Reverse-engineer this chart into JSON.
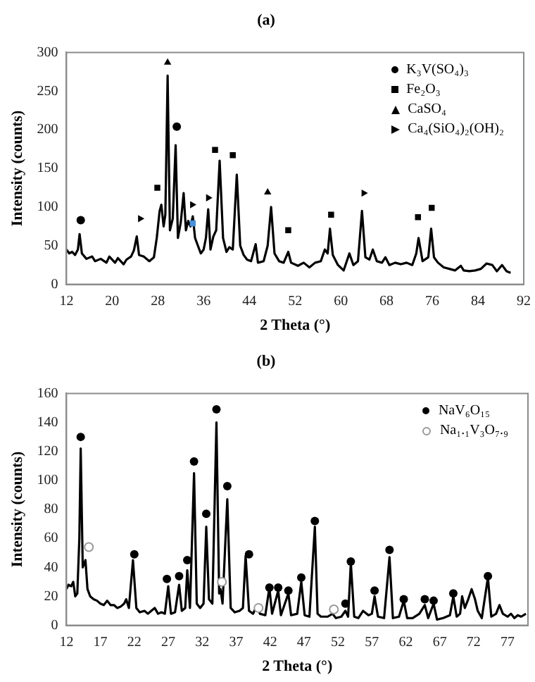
{
  "chart_data": [
    {
      "type": "line",
      "title": "(a)",
      "xlabel": "2 Theta (°)",
      "ylabel": "Intensity (counts)",
      "xlim": [
        12,
        92
      ],
      "ylim": [
        0,
        300
      ],
      "xticks": [
        12,
        20,
        28,
        36,
        44,
        52,
        60,
        68,
        76,
        84,
        92
      ],
      "yticks": [
        0,
        50,
        100,
        150,
        200,
        250,
        300
      ],
      "grid": false,
      "legend": "top right",
      "series": [
        {
          "type": "line",
          "color": "#000000",
          "marker": "none",
          "x": [
            12,
            12.5,
            13,
            13.5,
            14,
            14.3,
            14.7,
            15.5,
            16.5,
            17,
            18,
            19,
            19.5,
            20.5,
            21,
            22,
            22.5,
            23.3,
            23.8,
            24.3,
            24.7,
            25.5,
            26.5,
            27.3,
            27.8,
            28.3,
            28.6,
            29,
            29.3,
            29.7,
            30.1,
            30.6,
            31.1,
            31.5,
            32,
            32.5,
            32.9,
            33.3,
            33.7,
            34.1,
            34.5,
            35,
            35.5,
            36,
            36.4,
            36.8,
            37.2,
            37.7,
            38.2,
            38.8,
            39.4,
            40,
            40.5,
            41.1,
            41.8,
            42.4,
            43,
            43.6,
            44.3,
            45.1,
            45.5,
            46.5,
            47.2,
            47.8,
            48.4,
            49.2,
            50,
            50.8,
            51.3,
            52.5,
            53.5,
            54.5,
            55.5,
            56.5,
            57.2,
            57.7,
            58.1,
            58.6,
            59.5,
            60.5,
            61.5,
            62.2,
            63,
            63.7,
            64.3,
            65,
            65.6,
            66.3,
            67.2,
            67.8,
            68.5,
            69.5,
            70.5,
            71.5,
            72.5,
            73.2,
            73.6,
            74.3,
            75.3,
            75.8,
            76.3,
            77,
            78,
            79,
            80,
            81,
            81.5,
            82.5,
            83.5,
            84.5,
            85.5,
            86.5,
            87.3,
            88.2,
            89,
            89.7
          ],
          "values": [
            45,
            40,
            42,
            38,
            45,
            65,
            40,
            33,
            36,
            30,
            33,
            28,
            36,
            28,
            34,
            26,
            32,
            36,
            44,
            62,
            38,
            36,
            30,
            35,
            60,
            95,
            103,
            75,
            90,
            270,
            70,
            85,
            180,
            60,
            80,
            118,
            70,
            82,
            75,
            88,
            60,
            50,
            40,
            45,
            60,
            97,
            45,
            62,
            70,
            160,
            60,
            42,
            48,
            45,
            142,
            50,
            38,
            32,
            30,
            52,
            28,
            30,
            50,
            100,
            40,
            30,
            28,
            42,
            28,
            24,
            28,
            22,
            28,
            30,
            45,
            40,
            72,
            38,
            25,
            18,
            40,
            25,
            30,
            95,
            35,
            32,
            45,
            30,
            28,
            35,
            25,
            28,
            26,
            28,
            25,
            40,
            60,
            30,
            35,
            72,
            35,
            28,
            22,
            20,
            18,
            24,
            18,
            17,
            18,
            20,
            27,
            25,
            17,
            25,
            17,
            15
          ]
        },
        {
          "type": "scatter",
          "name": "K₃V(SO₄)₃",
          "color": "#000000",
          "marker": "circle",
          "x": [
            14.5,
            31.3
          ],
          "values": [
            83,
            204
          ]
        },
        {
          "type": "scatter",
          "name": "Fe₂O₃",
          "color": "#000000",
          "marker": "square",
          "x": [
            27.9,
            34.1,
            38,
            41.1,
            50.8,
            58.3,
            73.5,
            75.9
          ],
          "values": [
            125,
            79,
            174,
            167,
            70,
            90,
            87,
            99
          ],
          "colors": [
            "#000000",
            "#4a90d9",
            "#000000",
            "#000000",
            "#000000",
            "#000000",
            "#000000",
            "#000000"
          ]
        },
        {
          "type": "scatter",
          "name": "CaSO₄",
          "color": "#000000",
          "marker": "triangle",
          "x": [
            29.7,
            47.2
          ],
          "values": [
            287,
            119
          ]
        },
        {
          "type": "scatter",
          "name": "Ca₄(SiO₄)₂(OH)₂",
          "color": "#000000",
          "marker": "triangle-right",
          "x": [
            24.9,
            34,
            36.8,
            64
          ],
          "values": [
            85,
            103,
            112,
            118
          ]
        }
      ]
    },
    {
      "type": "line",
      "title": "(b)",
      "xlabel": "2 Theta (°)",
      "ylabel": "Intensity (counts)",
      "xlim": [
        12,
        80
      ],
      "ylim": [
        0,
        160
      ],
      "xticks": [
        12,
        17,
        22,
        27,
        32,
        37,
        42,
        47,
        52,
        57,
        62,
        67,
        72,
        77
      ],
      "yticks": [
        0,
        20,
        40,
        60,
        80,
        100,
        120,
        140,
        160
      ],
      "grid": false,
      "legend": "top right",
      "series": [
        {
          "type": "line",
          "color": "#000000",
          "marker": "none",
          "x": [
            12,
            12.3,
            12.7,
            13,
            13.3,
            13.6,
            13.9,
            14.1,
            14.4,
            14.8,
            15.1,
            15.5,
            16,
            16.5,
            17,
            17.5,
            18,
            18.5,
            19,
            19.5,
            20,
            20.5,
            20.8,
            21.2,
            21.8,
            22.3,
            22.8,
            23.5,
            24,
            24.5,
            25,
            25.5,
            26,
            26.5,
            27,
            27.4,
            28,
            28.6,
            29,
            29.5,
            29.8,
            30.2,
            30.8,
            31.2,
            31.7,
            32.2,
            32.6,
            33,
            33.5,
            34.1,
            34.5,
            34.7,
            35,
            35.7,
            36.2,
            36.8,
            37.5,
            38,
            38.4,
            38.9,
            39.5,
            40.1,
            40.5,
            41.3,
            41.9,
            42.3,
            43.2,
            43.6,
            44.7,
            45.1,
            46,
            46.6,
            47.1,
            47.8,
            48.6,
            49,
            49.5,
            50.5,
            51.2,
            51.7,
            52.5,
            53.1,
            53.5,
            53.9,
            54.4,
            55,
            55.7,
            56.5,
            57,
            57.4,
            57.9,
            58.8,
            59.6,
            60.1,
            61,
            61.7,
            62.2,
            63,
            64,
            64.8,
            65.3,
            66.1,
            66.6,
            67.5,
            68.5,
            69,
            69.5,
            70,
            70.3,
            70.7,
            71.2,
            71.7,
            72.2,
            72.6,
            73.2,
            74.1,
            74.6,
            75.3,
            75.8,
            76.3,
            77,
            77.5,
            78,
            78.5,
            79,
            79.7
          ],
          "values": [
            25,
            28,
            27,
            30,
            20,
            22,
            60,
            122,
            40,
            45,
            25,
            20,
            18,
            17,
            15,
            14,
            17,
            14,
            14,
            12,
            13,
            15,
            18,
            12,
            45,
            12,
            9,
            10,
            8,
            10,
            12,
            8,
            9,
            8,
            27,
            8,
            9,
            28,
            10,
            12,
            38,
            12,
            105,
            15,
            12,
            15,
            68,
            18,
            15,
            140,
            22,
            25,
            15,
            87,
            12,
            9,
            10,
            12,
            48,
            10,
            8,
            14,
            8,
            7,
            26,
            8,
            24,
            7,
            22,
            7,
            8,
            30,
            7,
            6,
            68,
            8,
            6,
            6,
            8,
            5,
            6,
            10,
            6,
            43,
            6,
            5,
            10,
            7,
            8,
            20,
            6,
            5,
            47,
            5,
            6,
            17,
            5,
            5,
            8,
            14,
            5,
            15,
            4,
            5,
            7,
            20,
            6,
            8,
            20,
            12,
            18,
            25,
            18,
            10,
            5,
            33,
            6,
            8,
            14,
            8,
            6,
            8,
            5,
            7,
            6,
            8
          ]
        },
        {
          "type": "scatter",
          "name": "NaV₆O₁₅",
          "color": "#000000",
          "marker": "circle",
          "x": [
            14.1,
            22,
            26.8,
            28.6,
            29.8,
            30.8,
            32.6,
            34.1,
            35.7,
            38.9,
            41.9,
            43.2,
            44.7,
            46.6,
            48.6,
            53.1,
            53.9,
            57.4,
            59.6,
            61.7,
            64.8,
            66.1,
            69,
            74.1
          ],
          "values": [
            130,
            49,
            32,
            34,
            45,
            113,
            77,
            149,
            96,
            49,
            26,
            26,
            24,
            33,
            72,
            15,
            44,
            24,
            52,
            18,
            18,
            17,
            22,
            34
          ]
        },
        {
          "type": "scatter",
          "name": "Na₁.₁V₃O₇.₉",
          "color": "#999999",
          "marker": "circle-open",
          "x": [
            15.3,
            34.9,
            40.3,
            51.4
          ],
          "values": [
            54,
            30,
            12,
            11
          ]
        }
      ]
    }
  ]
}
